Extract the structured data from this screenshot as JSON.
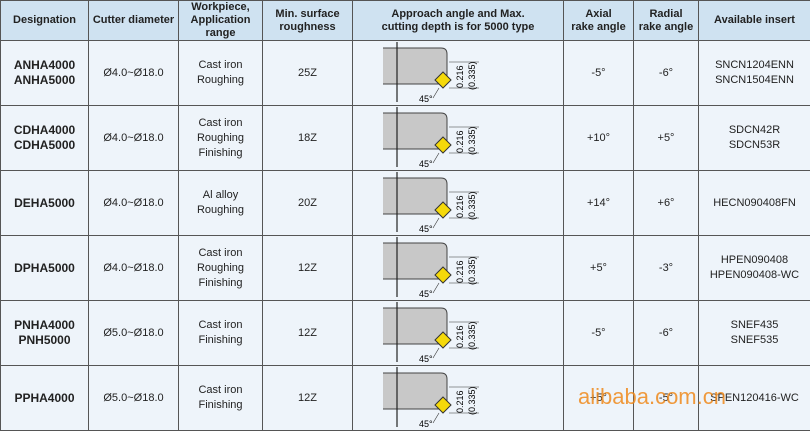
{
  "header": [
    "Designation",
    "Cutter diameter",
    [
      "Workpiece,",
      "Application range"
    ],
    [
      "Min. surface",
      "roughness"
    ],
    [
      "Approach angle and Max.",
      "cutting depth is for 5000 type"
    ],
    [
      "Axial",
      "rake angle"
    ],
    [
      "Radial",
      "rake angle"
    ],
    "Available insert"
  ],
  "diagram": {
    "depth": "0.216",
    "depth_max": "(0.335)",
    "angle": "45°"
  },
  "rows": [
    {
      "designation": [
        "ANHA4000",
        "ANHA5000"
      ],
      "diameter": "Ø4.0~Ø18.0",
      "workpiece": [
        "Cast iron",
        "Roughing"
      ],
      "roughness": "25Z",
      "axial": "-5°",
      "radial": "-6°",
      "insert": [
        "SNCN1204ENN",
        "SNCN1504ENN"
      ]
    },
    {
      "designation": [
        "CDHA4000",
        "CDHA5000"
      ],
      "diameter": "Ø4.0~Ø18.0",
      "workpiece": [
        "Cast iron",
        "Roughing",
        "Finishing"
      ],
      "roughness": "18Z",
      "axial": "+10°",
      "radial": "+5°",
      "insert": [
        "SDCN42R",
        "SDCN53R"
      ]
    },
    {
      "designation": [
        "DEHA5000"
      ],
      "diameter": "Ø4.0~Ø18.0",
      "workpiece": [
        "Al alloy",
        "Roughing"
      ],
      "roughness": "20Z",
      "axial": "+14°",
      "radial": "+6°",
      "insert": [
        "HECN090408FN"
      ]
    },
    {
      "designation": [
        "DPHA5000"
      ],
      "diameter": "Ø4.0~Ø18.0",
      "workpiece": [
        "Cast iron",
        "Roughing",
        "Finishing"
      ],
      "roughness": "12Z",
      "axial": "+5°",
      "radial": "-3°",
      "insert": [
        "HPEN090408",
        "HPEN090408-WC"
      ]
    },
    {
      "designation": [
        "PNHA4000",
        "PNH5000"
      ],
      "diameter": "Ø5.0~Ø18.0",
      "workpiece": [
        "Cast iron",
        "Finishing"
      ],
      "roughness": "12Z",
      "axial": "-5°",
      "radial": "-6°",
      "insert": [
        "SNEF435",
        "SNEF535"
      ]
    },
    {
      "designation": [
        "PPHA4000"
      ],
      "diameter": "Ø5.0~Ø18.0",
      "workpiece": [
        "Cast iron",
        "Finishing"
      ],
      "roughness": "12Z",
      "axial": "+5°",
      "radial": "-5°",
      "insert": [
        "SPEN120416-WC"
      ]
    }
  ],
  "watermark": "alibaba.com.cn"
}
